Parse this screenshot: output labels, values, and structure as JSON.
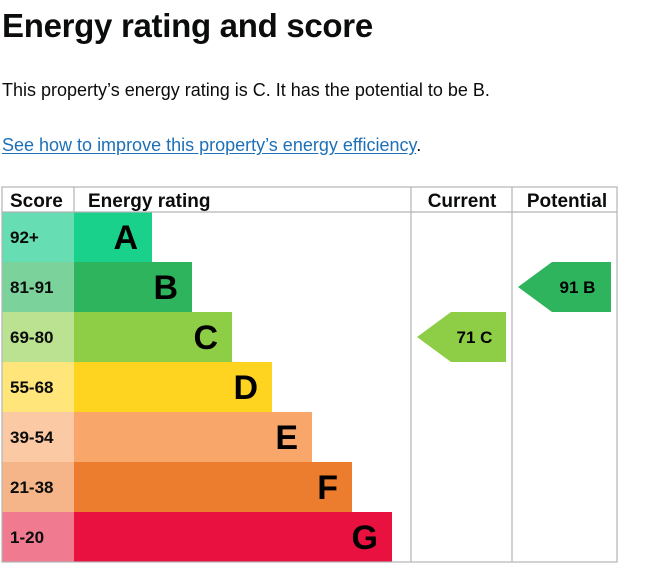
{
  "page": {
    "title": "Energy rating and score",
    "summary": "This property’s energy rating is C. It has the potential to be B.",
    "improve_link": "See how to improve this property’s energy efficiency",
    "improve_link_suffix": "."
  },
  "chart_data": {
    "type": "bar",
    "headers": {
      "score": "Score",
      "rating": "Energy rating",
      "current": "Current",
      "potential": "Potential"
    },
    "bands": [
      {
        "letter": "A",
        "range": "92+",
        "color": "#00c781",
        "bar_color": "#19d18a",
        "score_bg": "#66ddb3"
      },
      {
        "letter": "B",
        "range": "81-91",
        "color": "#19b459",
        "bar_color": "#2db45d",
        "score_bg": "#7bd39b"
      },
      {
        "letter": "C",
        "range": "69-80",
        "color": "#8dce46",
        "bar_color": "#8dce46",
        "score_bg": "#bbe290"
      },
      {
        "letter": "D",
        "range": "55-68",
        "color": "#ffd500",
        "bar_color": "#ffd420",
        "score_bg": "#ffe57a"
      },
      {
        "letter": "E",
        "range": "39-54",
        "color": "#fcaa65",
        "bar_color": "#f8a66a",
        "score_bg": "#fbc9a4"
      },
      {
        "letter": "F",
        "range": "21-38",
        "color": "#ef8023",
        "bar_color": "#ec7d2e",
        "score_bg": "#f5b588"
      },
      {
        "letter": "G",
        "range": "1-20",
        "color": "#e9153b",
        "bar_color": "#e8113f",
        "score_bg": "#f07a8f"
      }
    ],
    "current": {
      "score": 71,
      "band": "C",
      "label": "71 C",
      "color": "#8dce46"
    },
    "potential": {
      "score": 91,
      "band": "B",
      "label": "91 B",
      "color": "#2db45d"
    }
  }
}
